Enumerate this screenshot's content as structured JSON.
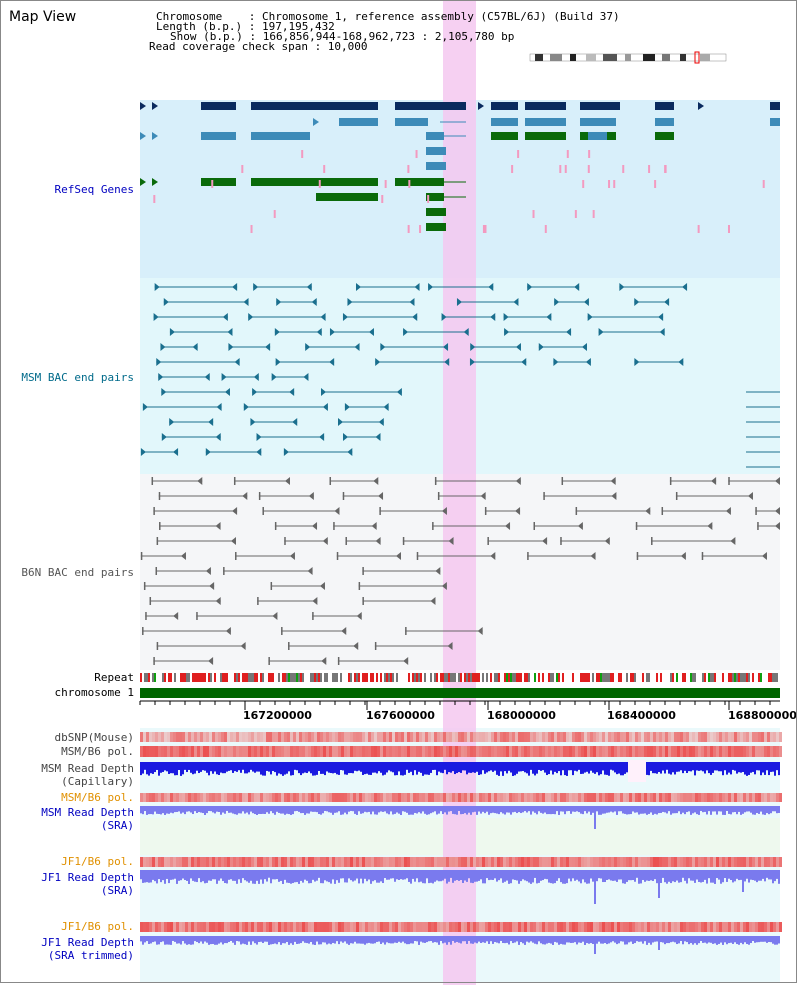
{
  "header": {
    "title": "Map View",
    "chromosome_line": "Chromosome    : Chromosome 1, reference assembly (C57BL/6J) (Build 37)",
    "length_line": "Length (b.p.) : 197,195,432",
    "show_line": "Show (b.p.) : 166,856,944-168,962,723 : 2,105,780 bp",
    "span_line": "Read coverage check span : 10,000"
  },
  "tracks": {
    "refseq": "RefSeq Genes",
    "msm_bac": "MSM BAC end pairs",
    "b6n_bac": "B6N BAC end pairs",
    "repeat": "Repeat",
    "chromosome": "chromosome 1",
    "dbsnp": "dbSNP(Mouse)",
    "msm_b6_pol_1": "MSM/B6 pol.",
    "msm_read_depth_cap_1": "MSM Read Depth",
    "msm_read_depth_cap_2": "(Capillary)",
    "msm_b6_pol_2": "MSM/B6 pol.",
    "msm_read_depth_sra_1": "MSM Read Depth",
    "msm_read_depth_sra_2": "(SRA)",
    "jf1_b6_pol_1": "JF1/B6 pol.",
    "jf1_read_depth_sra_1": "JF1 Read Depth",
    "jf1_read_depth_sra_2": "(SRA)",
    "jf1_b6_pol_2": "JF1/B6 pol.",
    "jf1_read_depth_trim_1": "JF1 Read Depth",
    "jf1_read_depth_trim_2": "(SRA trimmed)"
  },
  "axis": {
    "ticks": [
      "167200000",
      "167600000",
      "168000000",
      "168400000",
      "168800000"
    ]
  },
  "colors": {
    "refseq_bg": "#d8effa",
    "msm_bg": "#e2f7fb",
    "b6n_bg": "#f5f6f8",
    "highlight": "#f5c8f0",
    "gene_dark": "#0a2a5e",
    "gene_mid": "#3d8bb8",
    "gene_green": "#0a6a0a",
    "msm_line": "#1a6f8e",
    "b6n_line": "#666666",
    "chromosome_bar": "#006600",
    "depth_cap": "#1a1ae0",
    "depth_sra": "#7a7aee"
  }
}
